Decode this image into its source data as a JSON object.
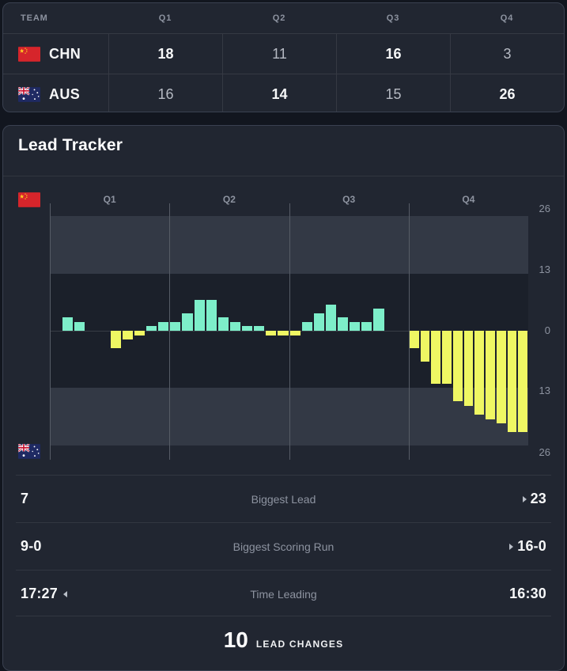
{
  "score_table": {
    "headers": [
      "TEAM",
      "Q1",
      "Q2",
      "Q3",
      "Q4"
    ],
    "rows": [
      {
        "team": "CHN",
        "flag": "china-flag",
        "scores": [
          {
            "value": "18",
            "bold": true
          },
          {
            "value": "11",
            "bold": false
          },
          {
            "value": "16",
            "bold": true
          },
          {
            "value": "3",
            "bold": false
          }
        ]
      },
      {
        "team": "AUS",
        "flag": "australia-flag",
        "scores": [
          {
            "value": "16",
            "bold": false
          },
          {
            "value": "14",
            "bold": true
          },
          {
            "value": "15",
            "bold": false
          },
          {
            "value": "26",
            "bold": true
          }
        ]
      }
    ]
  },
  "lead_tracker": {
    "title": "Lead Tracker",
    "top_flag": "china-flag",
    "bottom_flag": "australia-flag",
    "stats": [
      {
        "label": "Biggest Lead",
        "left_value": "7",
        "right_value": "23",
        "leader": "right"
      },
      {
        "label": "Biggest Scoring Run",
        "left_value": "9-0",
        "right_value": "16-0",
        "leader": "right"
      },
      {
        "label": "Time Leading",
        "left_value": "17:27",
        "right_value": "16:30",
        "leader": "left"
      }
    ],
    "lead_changes": {
      "value": "10",
      "label": "LEAD CHANGES"
    }
  },
  "chart_data": {
    "type": "bar",
    "title": "Lead Tracker",
    "description": "Point lead per minute of game time; positive bars = CHN lead (teal), negative bars = AUS lead (yellow), 0 = tied (no bar)",
    "quarter_labels": [
      "Q1",
      "Q2",
      "Q3",
      "Q4"
    ],
    "axis_tick_labels": [
      "26",
      "13",
      "0",
      "13",
      "26"
    ],
    "ylim": [
      -26,
      26
    ],
    "legend": {
      "top_left_flag": "CHN",
      "bottom_left_flag": "AUS"
    },
    "quarters": [
      {
        "label": "Q1",
        "values": [
          0,
          3,
          2,
          0,
          0,
          -4,
          -2,
          -1,
          1,
          2
        ]
      },
      {
        "label": "Q2",
        "values": [
          2,
          4,
          7,
          7,
          3,
          2,
          1,
          1,
          -1,
          -1
        ]
      },
      {
        "label": "Q3",
        "values": [
          -1,
          2,
          4,
          6,
          3,
          2,
          2,
          5,
          0,
          0
        ]
      },
      {
        "label": "Q4",
        "values": [
          -4,
          -7,
          -12,
          -12,
          -16,
          -17,
          -19,
          -20,
          -21,
          -23,
          -23
        ]
      }
    ],
    "colors": {
      "chn_positive": "#7deec9",
      "aus_negative": "#eff763"
    },
    "gridlines": "vertical-quarter-boundaries"
  }
}
